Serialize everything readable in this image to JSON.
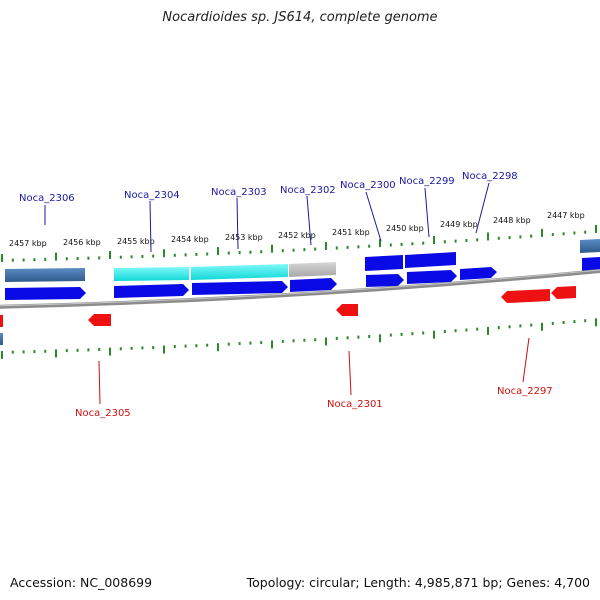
{
  "title": "Nocardioides sp. JS614, complete genome",
  "footer": {
    "accession": "Accession: NC_008699",
    "summary": "Topology: circular; Length: 4,985,871 bp; Genes: 4,700"
  },
  "colors": {
    "forward_gene": "#0a0ae6",
    "reverse_gene": "#ee1111",
    "forward_label": "#1a1aa0",
    "reverse_label": "#cc1111",
    "tick": "#2a8a2a",
    "backbone": "#8c8c8c",
    "cds_cyan": "#22eeee",
    "cds_steel": "#4a7ab0",
    "cds_gray": "#bbbbbb"
  },
  "scale_labels": [
    "2457 kbp",
    "2456 kbp",
    "2455 kbp",
    "2454 kbp",
    "2453 kbp",
    "2452 kbp",
    "2451 kbp",
    "2450 kbp",
    "2449 kbp",
    "2448 kbp",
    "2447 kbp"
  ],
  "forward_genes": [
    {
      "label": "Noca_2306"
    },
    {
      "label": "Noca_2304"
    },
    {
      "label": "Noca_2303"
    },
    {
      "label": "Noca_2302"
    },
    {
      "label": "Noca_2300"
    },
    {
      "label": "Noca_2299"
    },
    {
      "label": "Noca_2298"
    }
  ],
  "reverse_genes": [
    {
      "label": "Noca_2305"
    },
    {
      "label": "Noca_2301"
    },
    {
      "label": "Noca_2297"
    }
  ]
}
